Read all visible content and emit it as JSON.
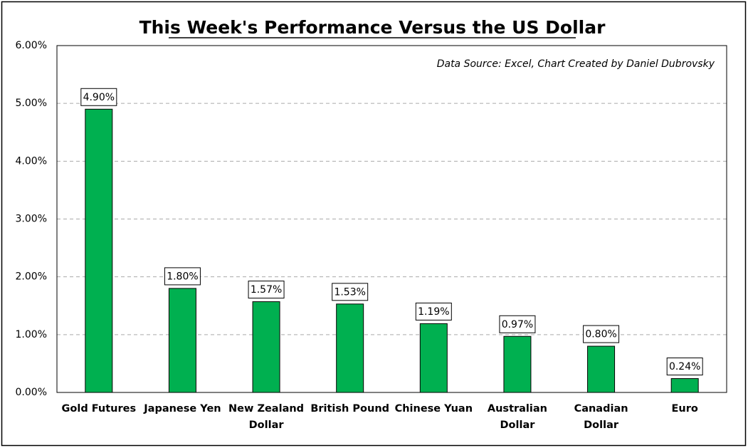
{
  "chart_data": {
    "type": "bar",
    "title": "This Week's Performance Versus the US Dollar",
    "annotation": "Data Source: Excel, Chart Created by Daniel Dubrovsky",
    "categories": [
      "Gold Futures",
      "Japanese Yen",
      "New Zealand Dollar",
      "British Pound",
      "Chinese Yuan",
      "Australian Dollar",
      "Canadian Dollar",
      "Euro"
    ],
    "values": [
      4.9,
      1.8,
      1.57,
      1.53,
      1.19,
      0.97,
      0.8,
      0.24
    ],
    "value_labels": [
      "4.90%",
      "1.80%",
      "1.57%",
      "1.53%",
      "1.19%",
      "0.97%",
      "0.80%",
      "0.24%"
    ],
    "color": "#00b050",
    "ylim": [
      0,
      6
    ],
    "yticks": [
      {
        "value": 0,
        "label": "0.00%"
      },
      {
        "value": 1,
        "label": "1.00%"
      },
      {
        "value": 2,
        "label": "2.00%"
      },
      {
        "value": 3,
        "label": "3.00%"
      },
      {
        "value": 4,
        "label": "4.00%"
      },
      {
        "value": 5,
        "label": "5.00%"
      },
      {
        "value": 6,
        "label": "6.00%"
      }
    ],
    "grid": true
  }
}
